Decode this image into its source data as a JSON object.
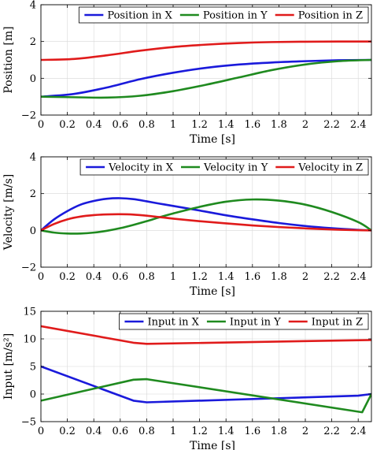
{
  "colors": {
    "x": "#1a1adb",
    "y": "#1f8a1f",
    "z": "#e01b1b"
  },
  "chart_data": [
    {
      "type": "line",
      "xlabel": "Time [s]",
      "ylabel": "Position [m]",
      "xlim": [
        0,
        2.5
      ],
      "ylim": [
        -2,
        4
      ],
      "xticks": [
        "0",
        "0.2",
        "0.4",
        "0.6",
        "0.8",
        "1",
        "1.2",
        "1.4",
        "1.6",
        "1.8",
        "2",
        "2.2",
        "2.4"
      ],
      "yticks": [
        "−2",
        "0",
        "2",
        "4"
      ],
      "grid": true,
      "legend": "top-right",
      "x": [
        0,
        0.25,
        0.5,
        0.75,
        1.0,
        1.25,
        1.5,
        1.75,
        2.0,
        2.25,
        2.5
      ],
      "series": [
        {
          "name": "Position in X",
          "color": "#1a1adb",
          "values": [
            -1.0,
            -0.85,
            -0.5,
            -0.05,
            0.3,
            0.57,
            0.75,
            0.86,
            0.93,
            0.98,
            1.0
          ]
        },
        {
          "name": "Position in Y",
          "color": "#1f8a1f",
          "values": [
            -1.0,
            -1.03,
            -1.05,
            -0.95,
            -0.7,
            -0.35,
            0.05,
            0.45,
            0.75,
            0.93,
            1.0
          ]
        },
        {
          "name": "Position in Z",
          "color": "#e01b1b",
          "values": [
            1.0,
            1.05,
            1.25,
            1.5,
            1.7,
            1.83,
            1.92,
            1.97,
            1.99,
            2.0,
            2.0
          ]
        }
      ]
    },
    {
      "type": "line",
      "xlabel": "Time [s]",
      "ylabel": "Velocity [m/s]",
      "xlim": [
        0,
        2.5
      ],
      "ylim": [
        -2,
        4
      ],
      "xticks": [
        "0",
        "0.2",
        "0.4",
        "0.6",
        "0.8",
        "1",
        "1.2",
        "1.4",
        "1.6",
        "1.8",
        "2",
        "2.2",
        "2.4"
      ],
      "yticks": [
        "−2",
        "0",
        "2",
        "4"
      ],
      "grid": true,
      "legend": "top-right",
      "x": [
        0,
        0.1,
        0.2,
        0.3,
        0.4,
        0.5,
        0.6,
        0.7,
        0.8,
        0.9,
        1.0,
        1.2,
        1.4,
        1.6,
        1.8,
        2.0,
        2.2,
        2.4,
        2.5
      ],
      "series": [
        {
          "name": "Velocity in X",
          "color": "#1a1adb",
          "values": [
            0,
            0.6,
            1.05,
            1.4,
            1.6,
            1.72,
            1.75,
            1.7,
            1.58,
            1.45,
            1.33,
            1.08,
            0.82,
            0.6,
            0.4,
            0.24,
            0.12,
            0.03,
            0
          ]
        },
        {
          "name": "Velocity in Y",
          "color": "#1f8a1f",
          "values": [
            0,
            -0.12,
            -0.17,
            -0.17,
            -0.12,
            -0.02,
            0.12,
            0.3,
            0.5,
            0.72,
            0.92,
            1.28,
            1.56,
            1.68,
            1.62,
            1.4,
            1.0,
            0.45,
            0
          ]
        },
        {
          "name": "Velocity in Z",
          "color": "#e01b1b",
          "values": [
            0,
            0.35,
            0.6,
            0.75,
            0.83,
            0.87,
            0.88,
            0.86,
            0.8,
            0.72,
            0.64,
            0.5,
            0.38,
            0.27,
            0.18,
            0.11,
            0.05,
            0.01,
            0
          ]
        }
      ]
    },
    {
      "type": "line",
      "xlabel": "Time [s]",
      "ylabel": "Input [m/s²]",
      "xlim": [
        0,
        2.5
      ],
      "ylim": [
        -5,
        15
      ],
      "xticks": [
        "0",
        "0.2",
        "0.4",
        "0.6",
        "0.8",
        "1",
        "1.2",
        "1.4",
        "1.6",
        "1.8",
        "2",
        "2.2",
        "2.4"
      ],
      "yticks": [
        "−5",
        "0",
        "5",
        "10",
        "15"
      ],
      "grid": true,
      "legend": "top-right",
      "series": [
        {
          "name": "Input in X",
          "color": "#1a1adb",
          "x": [
            0,
            0.7,
            0.8,
            2.4,
            2.5
          ],
          "values": [
            5.0,
            -1.2,
            -1.5,
            -0.3,
            0.0
          ]
        },
        {
          "name": "Input in Y",
          "color": "#1f8a1f",
          "x": [
            0,
            0.7,
            0.8,
            2.43,
            2.5
          ],
          "values": [
            -1.2,
            2.6,
            2.7,
            -3.3,
            0.0
          ]
        },
        {
          "name": "Input in Z",
          "color": "#e01b1b",
          "x": [
            0,
            0.7,
            0.8,
            2.5
          ],
          "values": [
            12.3,
            9.3,
            9.1,
            9.8
          ]
        }
      ]
    }
  ]
}
